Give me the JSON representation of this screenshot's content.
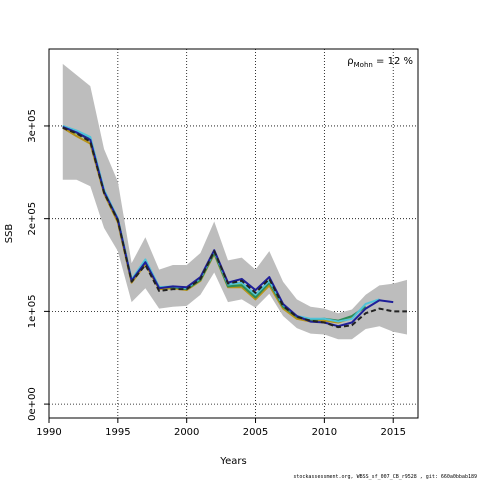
{
  "chart_data": {
    "type": "line",
    "title": "",
    "xlabel": "Years",
    "ylabel": "SSB",
    "xlim": [
      1990,
      2016.8
    ],
    "ylim": [
      -15000,
      383000
    ],
    "x_ticks": [
      1990,
      1995,
      2000,
      2005,
      2010,
      2015
    ],
    "x_tick_labels": [
      "1990",
      "1995",
      "2000",
      "2005",
      "2010",
      "2015"
    ],
    "y_ticks": [
      0,
      100000,
      200000,
      300000
    ],
    "y_tick_labels": [
      "0e+00",
      "1e+05",
      "2e+05",
      "3e+05"
    ],
    "grid": true,
    "annotation_parts": [
      "ρ",
      "Mohn",
      " = 12 %"
    ],
    "footer": "stockassessment.org, WBSS_sf_007_CB_r9528 , git: 660a0bbab189",
    "band": {
      "x": [
        1991,
        1992,
        1993,
        1994,
        1995,
        1996,
        1997,
        1998,
        1999,
        2000,
        2001,
        2002,
        2003,
        2004,
        2005,
        2006,
        2007,
        2008,
        2009,
        2010,
        2011,
        2012,
        2013,
        2014,
        2015,
        2016
      ],
      "upper": [
        367000,
        355000,
        343000,
        275000,
        240000,
        152000,
        180000,
        145000,
        150000,
        150000,
        163000,
        197000,
        155000,
        158000,
        145000,
        165000,
        132000,
        113000,
        105000,
        103000,
        98000,
        102000,
        118000,
        128000,
        130000,
        134000
      ],
      "lower": [
        242000,
        242000,
        235000,
        190000,
        165000,
        110000,
        125000,
        103000,
        105000,
        106000,
        118000,
        142000,
        110000,
        113000,
        104000,
        119000,
        95000,
        82000,
        76000,
        75000,
        70000,
        70000,
        81000,
        84000,
        78000,
        75000
      ]
    },
    "series": [
      {
        "color": "#222222",
        "x": [
          1991,
          1992,
          1993,
          1994,
          1995,
          1996,
          1997,
          1998,
          1999,
          2000,
          2001,
          2002,
          2003,
          2004,
          2005,
          2006,
          2007,
          2008,
          2009,
          2010,
          2011,
          2012,
          2013,
          2014,
          2015,
          2016
        ],
        "values": [
          298000,
          292000,
          283000,
          228000,
          198000,
          132000,
          150000,
          122000,
          124000,
          124000,
          135000,
          165000,
          130000,
          133000,
          120000,
          135000,
          106000,
          94000,
          90000,
          88000,
          83000,
          85000,
          98000,
          103000,
          100000,
          100000
        ],
        "dashed": true
      },
      {
        "color": "#1f1f99",
        "x": [
          1991,
          1992,
          1993,
          1994,
          1995,
          1996,
          1997,
          1998,
          1999,
          2000,
          2001,
          2002,
          2003,
          2004,
          2005,
          2006,
          2007,
          2008,
          2009,
          2010,
          2011,
          2012,
          2013,
          2014,
          2015
        ],
        "values": [
          299000,
          293000,
          285000,
          229000,
          199000,
          133000,
          153000,
          125000,
          127000,
          126000,
          137000,
          166000,
          131000,
          135000,
          123000,
          137000,
          108000,
          95000,
          89000,
          88000,
          84000,
          88000,
          103000,
          112000,
          110000
        ],
        "dashed": false
      },
      {
        "color": "#4fc3d9",
        "x": [
          1991,
          1992,
          1993,
          1994,
          1995,
          1996,
          1997,
          1998,
          1999,
          2000,
          2001,
          2002,
          2003,
          2004,
          2005,
          2006,
          2007,
          2008,
          2009,
          2010,
          2011,
          2012,
          2013,
          2014
        ],
        "values": [
          300000,
          295000,
          288000,
          231000,
          200000,
          134000,
          156000,
          126000,
          127000,
          125000,
          136000,
          165000,
          129000,
          131000,
          118000,
          133000,
          107000,
          95000,
          92000,
          92000,
          89000,
          92000,
          108000,
          113000
        ],
        "dashed": false
      },
      {
        "color": "#2e8b57",
        "x": [
          1991,
          1992,
          1993,
          1994,
          1995,
          1996,
          1997,
          1998,
          1999,
          2000,
          2001,
          2002,
          2003,
          2004,
          2005,
          2006,
          2007,
          2008,
          2009,
          2010,
          2011,
          2012,
          2013
        ],
        "values": [
          300000,
          294000,
          287000,
          230000,
          200000,
          134000,
          155000,
          126000,
          126000,
          124000,
          134000,
          163000,
          127000,
          128000,
          115000,
          131000,
          105000,
          94000,
          91000,
          92000,
          90000,
          95000,
          105000
        ],
        "dashed": false
      },
      {
        "color": "#b8941a",
        "x": [
          1991,
          1992,
          1993,
          1994,
          1995,
          1996,
          1997,
          1998,
          1999,
          2000,
          2001,
          2002,
          2003,
          2004,
          2005,
          2006,
          2007,
          2008,
          2009,
          2010,
          2011,
          2012
        ],
        "values": [
          298000,
          289000,
          281000,
          227000,
          196000,
          131000,
          151000,
          124000,
          125000,
          123000,
          133000,
          162000,
          126000,
          126000,
          113000,
          128000,
          103000,
          92000,
          89000,
          90000,
          88000,
          93000
        ],
        "dashed": false
      },
      {
        "color": "#7cc242",
        "x": [
          1991,
          1992,
          1993,
          1994,
          1995,
          1996,
          1997,
          1998,
          1999,
          2000,
          2001,
          2002,
          2003,
          2004,
          2005,
          2006,
          2007,
          2008,
          2009,
          2010,
          2011
        ],
        "values": [
          299000,
          292000,
          285000,
          229000,
          198000,
          133000,
          154000,
          126000,
          126000,
          124000,
          135000,
          164000,
          128000,
          129000,
          116000,
          130000,
          105000,
          93000,
          90000,
          91000,
          89000
        ],
        "dashed": false
      }
    ]
  }
}
